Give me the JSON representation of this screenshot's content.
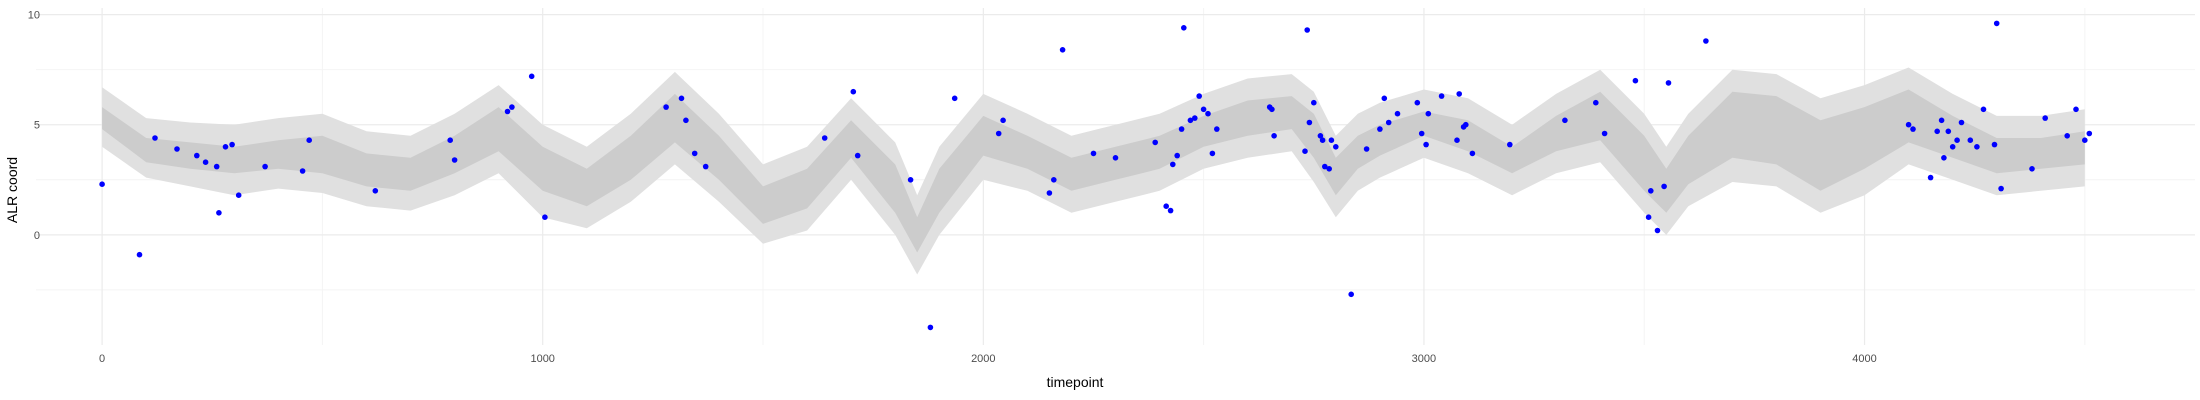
{
  "chart_data": {
    "type": "scatter",
    "title": "",
    "xlabel": "timepoint",
    "ylabel": "ALR coord",
    "xlim": [
      -150,
      4750
    ],
    "ylim": [
      -5,
      10.3
    ],
    "x_ticks": [
      0,
      1000,
      2000,
      3000,
      4000
    ],
    "y_ticks": [
      0,
      5,
      10
    ],
    "x_tick_labels": [
      "0",
      "1000",
      "2000",
      "3000",
      "4000"
    ],
    "y_tick_labels": [
      "0",
      "5",
      "10"
    ],
    "grid": true,
    "legend": "none",
    "colors": {
      "points": "#0000ff",
      "band_inner": "#cccccc",
      "band_outer": "#e0e0e0",
      "grid_major": "#ebebeb",
      "grid_minor": "#f4f4f4"
    },
    "band": {
      "x": [
        0,
        100,
        200,
        300,
        400,
        500,
        600,
        700,
        800,
        900,
        1000,
        1100,
        1200,
        1300,
        1400,
        1500,
        1600,
        1700,
        1800,
        1850,
        1900,
        2000,
        2100,
        2200,
        2300,
        2400,
        2500,
        2600,
        2700,
        2750,
        2800,
        2850,
        2900,
        3000,
        3100,
        3200,
        3300,
        3400,
        3500,
        3550,
        3600,
        3700,
        3800,
        3900,
        4000,
        4100,
        4200,
        4300,
        4400,
        4500
      ],
      "inner_lower": [
        4.8,
        3.3,
        3.0,
        2.8,
        3.0,
        2.8,
        2.2,
        2.0,
        2.8,
        3.8,
        2.0,
        1.3,
        2.5,
        4.2,
        2.5,
        0.5,
        1.2,
        3.5,
        1.0,
        -0.8,
        1.0,
        3.6,
        3.0,
        2.0,
        2.5,
        3.0,
        4.0,
        4.5,
        4.8,
        3.5,
        1.8,
        3.0,
        3.6,
        4.5,
        3.8,
        2.8,
        3.8,
        4.3,
        2.0,
        1.0,
        2.3,
        3.5,
        3.2,
        2.0,
        3.0,
        4.2,
        3.5,
        2.8,
        3.0,
        3.2
      ],
      "inner_upper": [
        5.8,
        4.4,
        4.2,
        4.0,
        4.3,
        4.5,
        3.7,
        3.5,
        4.5,
        5.8,
        4.0,
        3.0,
        4.5,
        6.4,
        4.5,
        2.2,
        3.0,
        5.2,
        3.2,
        0.8,
        3.0,
        5.4,
        4.5,
        3.5,
        4.0,
        4.5,
        5.4,
        6.1,
        6.3,
        5.5,
        3.5,
        4.5,
        5.0,
        5.6,
        5.2,
        4.0,
        5.4,
        6.5,
        4.5,
        3.0,
        4.5,
        6.5,
        6.3,
        5.2,
        5.8,
        6.6,
        5.4,
        4.4,
        4.4,
        4.7
      ],
      "outer_lower": [
        4.0,
        2.6,
        2.2,
        1.8,
        2.1,
        1.9,
        1.3,
        1.1,
        1.8,
        2.8,
        0.8,
        0.3,
        1.5,
        3.2,
        1.5,
        -0.4,
        0.2,
        2.5,
        0.0,
        -1.8,
        0.0,
        2.5,
        2.0,
        1.0,
        1.5,
        2.0,
        3.0,
        3.5,
        3.8,
        2.4,
        0.8,
        2.0,
        2.6,
        3.5,
        2.8,
        1.8,
        2.8,
        3.3,
        1.0,
        0.0,
        1.3,
        2.4,
        2.2,
        1.0,
        1.8,
        3.2,
        2.5,
        1.8,
        2.0,
        2.2
      ],
      "outer_upper": [
        6.7,
        5.3,
        5.1,
        5.0,
        5.3,
        5.5,
        4.7,
        4.5,
        5.5,
        6.8,
        5.0,
        4.0,
        5.5,
        7.4,
        5.5,
        3.2,
        4.0,
        6.2,
        4.2,
        1.8,
        4.0,
        6.4,
        5.5,
        4.5,
        5.0,
        5.5,
        6.4,
        7.1,
        7.3,
        6.5,
        4.5,
        5.5,
        6.0,
        6.6,
        6.2,
        5.0,
        6.4,
        7.5,
        5.5,
        4.0,
        5.5,
        7.5,
        7.3,
        6.2,
        6.8,
        7.6,
        6.4,
        5.4,
        5.4,
        5.7
      ]
    },
    "points": {
      "x": [
        0,
        85,
        120,
        170,
        215,
        235,
        260,
        265,
        280,
        295,
        310,
        370,
        455,
        470,
        620,
        790,
        800,
        920,
        930,
        975,
        1005,
        1280,
        1315,
        1325,
        1345,
        1370,
        1640,
        1705,
        1715,
        1835,
        1880,
        1935,
        2035,
        2045,
        2150,
        2160,
        2180,
        2250,
        2300,
        2390,
        2415,
        2425,
        2430,
        2440,
        2450,
        2455,
        2470,
        2480,
        2490,
        2500,
        2510,
        2520,
        2530,
        2650,
        2655,
        2660,
        2730,
        2735,
        2740,
        2750,
        2765,
        2770,
        2775,
        2785,
        2790,
        2800,
        2835,
        2870,
        2900,
        2910,
        2920,
        2940,
        2985,
        2995,
        3005,
        3010,
        3040,
        3075,
        3080,
        3090,
        3095,
        3110,
        3195,
        3320,
        3390,
        3410,
        3480,
        3510,
        3515,
        3530,
        3545,
        3555,
        3640,
        4100,
        4110,
        4150,
        4165,
        4175,
        4180,
        4190,
        4200,
        4210,
        4220,
        4240,
        4255,
        4270,
        4295,
        4300,
        4310,
        4380,
        4410,
        4460,
        4480,
        4500,
        4510
      ],
      "y": [
        2.3,
        -0.9,
        4.4,
        3.9,
        3.6,
        3.3,
        3.1,
        1.0,
        4.0,
        4.1,
        1.8,
        3.1,
        2.9,
        4.3,
        2.0,
        4.3,
        3.4,
        5.6,
        5.8,
        7.2,
        0.8,
        5.8,
        6.2,
        5.2,
        3.7,
        3.1,
        4.4,
        6.5,
        3.6,
        2.5,
        -4.2,
        6.2,
        4.6,
        5.2,
        1.9,
        2.5,
        8.4,
        3.7,
        3.5,
        4.2,
        1.3,
        1.1,
        3.2,
        3.6,
        4.8,
        9.4,
        5.2,
        5.3,
        6.3,
        5.7,
        5.5,
        3.7,
        4.8,
        5.8,
        5.7,
        4.5,
        3.8,
        9.3,
        5.1,
        6.0,
        4.5,
        4.3,
        3.1,
        3.0,
        4.3,
        4.0,
        -2.7,
        3.9,
        4.8,
        6.2,
        5.1,
        5.5,
        6.0,
        4.6,
        4.1,
        5.5,
        6.3,
        4.3,
        6.4,
        4.9,
        5.0,
        3.7,
        4.1,
        5.2,
        6.0,
        4.6,
        7.0,
        0.8,
        2.0,
        0.2,
        2.2,
        6.9,
        8.8,
        5.0,
        4.8,
        2.6,
        4.7,
        5.2,
        3.5,
        4.7,
        4.0,
        4.3,
        5.1,
        4.3,
        4.0,
        5.7,
        4.1,
        9.6,
        2.1,
        3.0,
        5.3,
        4.5,
        5.7,
        4.3,
        4.6
      ]
    }
  }
}
